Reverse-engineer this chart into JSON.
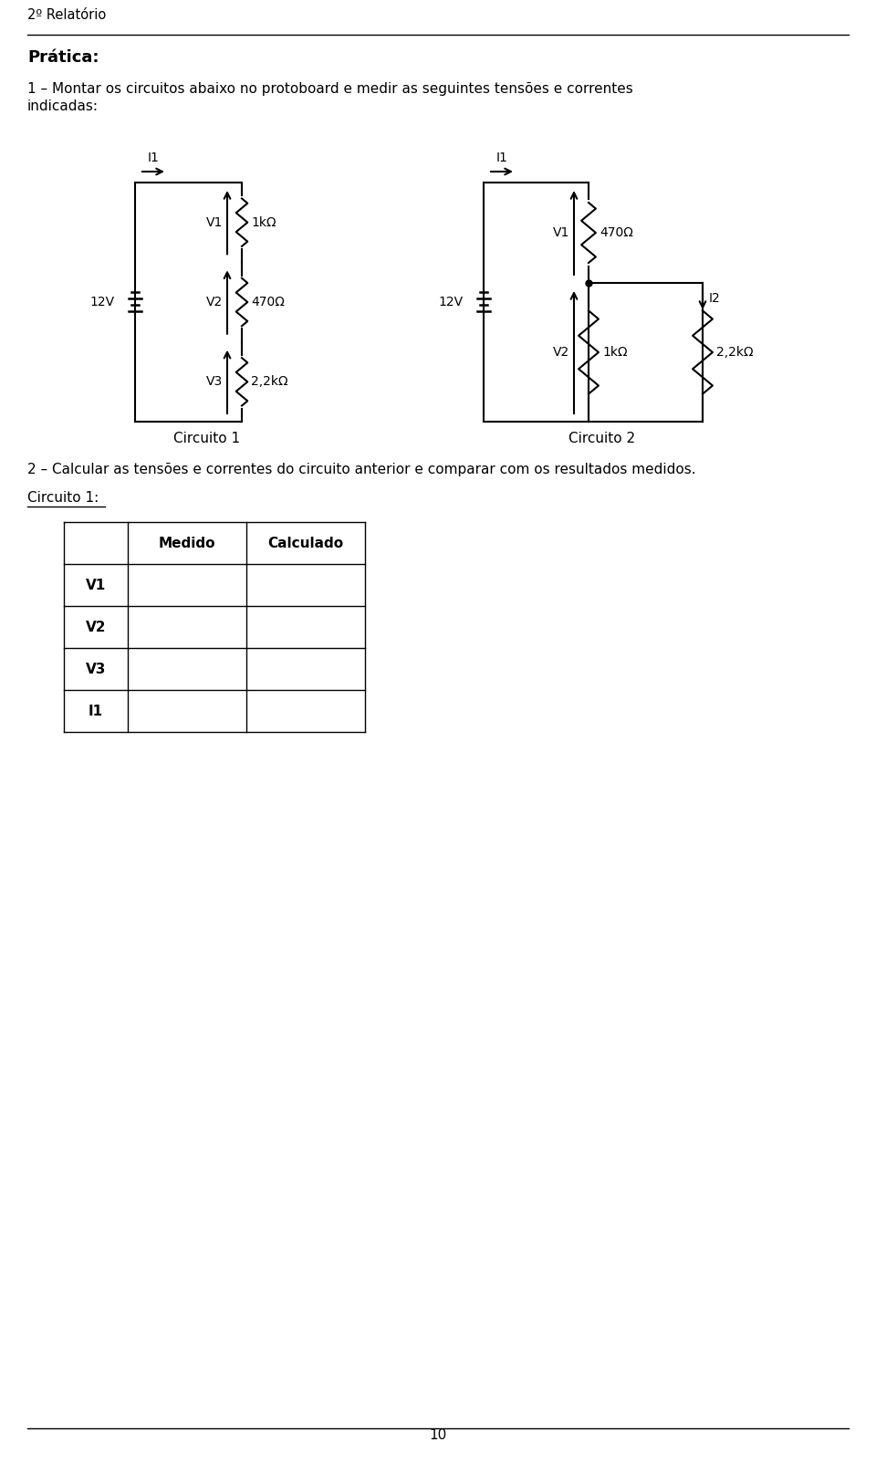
{
  "page_title": "2º Relatório",
  "section_title": "Prática:",
  "item1_line1": "1 – Montar os circuitos abaixo no protoboard e medir as seguintes tensões e correntes",
  "item1_line2": "indicadas:",
  "circuit1_label": "Circuito 1",
  "circuit2_label": "Circuito 2",
  "item2_text": "2 – Calcular as tensões e correntes do circuito anterior e comparar com os resultados medidos.",
  "circuito1_underlined": "Circuito 1:",
  "table_headers": [
    "",
    "Medido",
    "Calculado"
  ],
  "table_rows": [
    "V1",
    "V2",
    "V3",
    "I1"
  ],
  "page_number": "10",
  "bg_color": "#ffffff",
  "black": "#000000",
  "lw": 1.5,
  "fs_body": 11,
  "fs_title": 13,
  "fs_circuit": 10,
  "fs_page": 10.5
}
